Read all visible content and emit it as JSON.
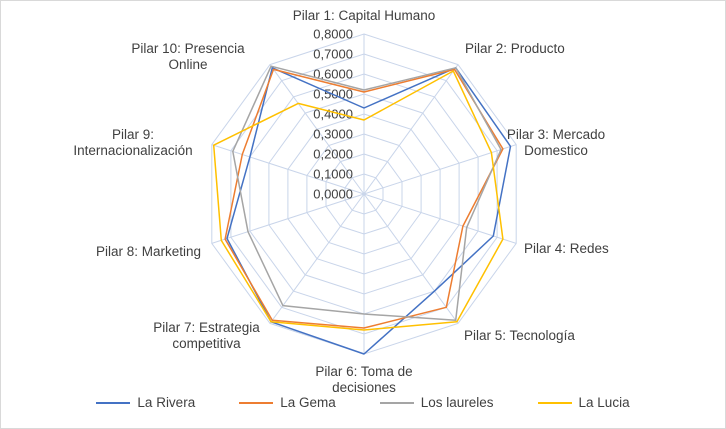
{
  "chart_data": {
    "type": "radar",
    "title": "",
    "rmin": 0.0,
    "rmax": 0.8,
    "tick_step": 0.1,
    "tick_labels": [
      "0,0000",
      "0,1000",
      "0,2000",
      "0,3000",
      "0,4000",
      "0,5000",
      "0,6000",
      "0,7000",
      "0,8000"
    ],
    "grid_on": true,
    "grid_color": "#C9D5EA",
    "text_color": "#404040",
    "frame_border_color": "#D9D9D9",
    "legend_position": "bottom",
    "axes": [
      {
        "label": "Pilar 1: Capital Humano"
      },
      {
        "label": "Pilar 2: Producto"
      },
      {
        "label": "Pilar 3: Mercado\nDomestico"
      },
      {
        "label": "Pilar 4: Redes"
      },
      {
        "label": "Pilar 5: Tecnología"
      },
      {
        "label": "Pilar 6: Toma de\ndecisiones"
      },
      {
        "label": "Pilar 7: Estrategia\ncompetitiva"
      },
      {
        "label": "Pilar 8: Marketing"
      },
      {
        "label": "Pilar 9:\nInternacionalización"
      },
      {
        "label": "Pilar 10: Presencia\nOnline"
      }
    ],
    "series": [
      {
        "name": "La Rivera",
        "color": "#4472C4",
        "values": [
          0.43,
          0.78,
          0.77,
          0.68,
          0.6,
          0.8,
          0.79,
          0.72,
          0.6,
          0.78
        ]
      },
      {
        "name": "La Gema",
        "color": "#ED7D31",
        "values": [
          0.51,
          0.77,
          0.73,
          0.52,
          0.7,
          0.67,
          0.78,
          0.73,
          0.64,
          0.77
        ]
      },
      {
        "name": "Los laureles",
        "color": "#A5A5A5",
        "values": [
          0.52,
          0.78,
          0.72,
          0.54,
          0.78,
          0.6,
          0.69,
          0.61,
          0.69,
          0.79
        ]
      },
      {
        "name": "La Lucia",
        "color": "#FFC000",
        "values": [
          0.37,
          0.76,
          0.67,
          0.73,
          0.79,
          0.68,
          0.79,
          0.75,
          0.79,
          0.56
        ]
      }
    ]
  }
}
